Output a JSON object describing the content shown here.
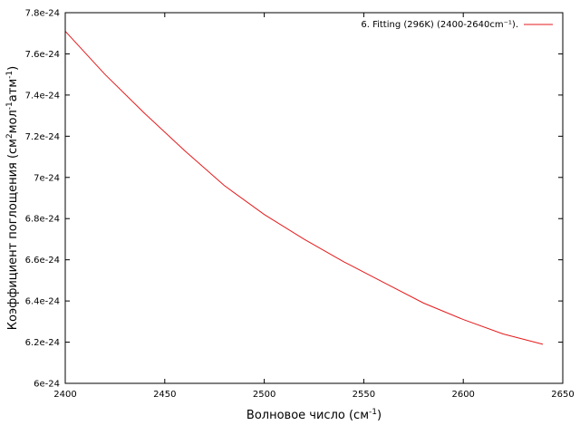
{
  "chart_data": {
    "type": "line",
    "xlabel": "Волновое число (см",
    "xlabel_sup": "-1",
    "xlabel_tail": ")",
    "ylabel_parts": [
      "Коэффициент поглощения (см",
      "2",
      "мол",
      "-1",
      "атм",
      "-1",
      ")"
    ],
    "xlim": [
      2400,
      2650
    ],
    "ylim": [
      6e-24,
      7.8e-24
    ],
    "x_ticks": [
      2400,
      2450,
      2500,
      2550,
      2600,
      2650
    ],
    "x_tick_labels": [
      "2400",
      "2450",
      "2500",
      "2550",
      "2600",
      "2650"
    ],
    "y_ticks": [
      6e-24,
      6.2e-24,
      6.4e-24,
      6.6e-24,
      6.8e-24,
      7e-24,
      7.2e-24,
      7.4e-24,
      7.6e-24,
      7.8e-24
    ],
    "y_tick_labels": [
      "6e-24",
      "6.2e-24",
      "6.4e-24",
      "6.6e-24",
      "6.8e-24",
      "7e-24",
      "7.2e-24",
      "7.4e-24",
      "7.6e-24",
      "7.8e-24"
    ],
    "grid": false,
    "legend_position": "top-right",
    "series": [
      {
        "name": "6. Fitting (296K) (2400-2640cm⁻¹).",
        "color": "#e41a1c",
        "x": [
          2400,
          2420,
          2440,
          2460,
          2480,
          2500,
          2520,
          2540,
          2560,
          2580,
          2600,
          2620,
          2640
        ],
        "y": [
          7.71e-24,
          7.5e-24,
          7.31e-24,
          7.13e-24,
          6.96e-24,
          6.82e-24,
          6.7e-24,
          6.59e-24,
          6.49e-24,
          6.39e-24,
          6.31e-24,
          6.24e-24,
          6.19e-24
        ]
      }
    ]
  }
}
